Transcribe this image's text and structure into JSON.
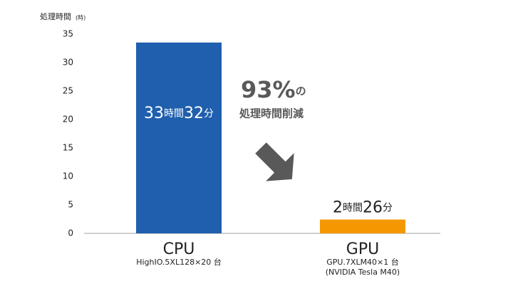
{
  "chart_data": {
    "type": "bar",
    "y_axis_label": "処理時間",
    "y_axis_unit": "(時)",
    "categories": [
      "CPU",
      "GPU"
    ],
    "category_sublabels": [
      [
        "HighIO.5XL128×20 台"
      ],
      [
        "GPU.7XLM40×1 台",
        "(NVIDIA Tesla M40)"
      ]
    ],
    "values": [
      33.53,
      2.43
    ],
    "value_labels": [
      "33時間32分",
      "2時間26分"
    ],
    "colors": [
      "#1f5fae",
      "#f39800"
    ],
    "ylim": [
      0,
      35
    ],
    "yticks": [
      0,
      5,
      10,
      15,
      20,
      25,
      30,
      35
    ],
    "grid": false,
    "annotations": [
      "93%の",
      "処理時間削減"
    ]
  }
}
